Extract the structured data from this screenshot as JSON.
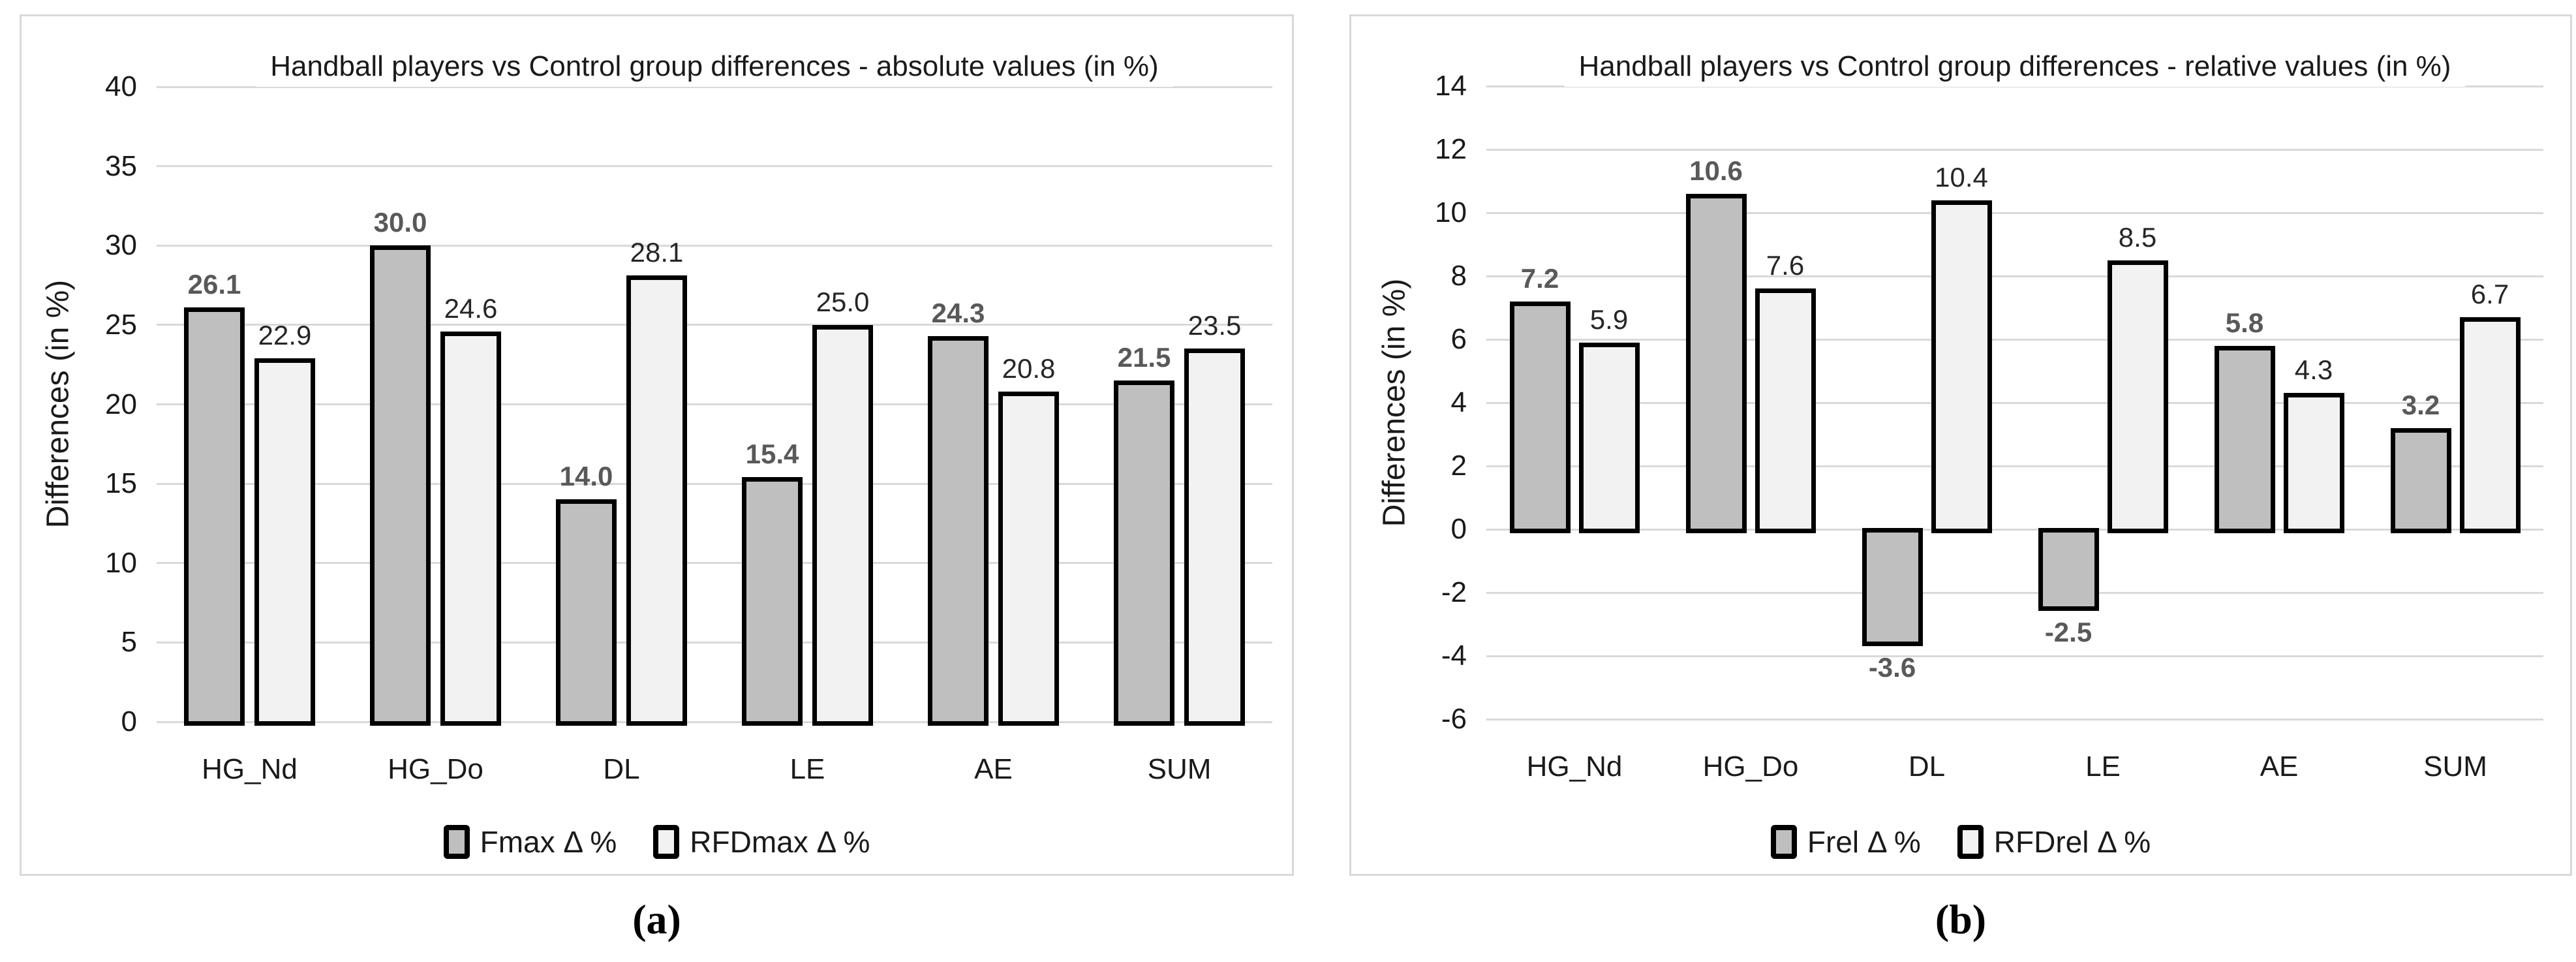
{
  "styles": {
    "series1_fill": "#bfbfbf",
    "series2_fill": "#f2f2f2",
    "bar_border": "#000000",
    "gridline_color": "#d9d9d9",
    "panel_border_color": "#d9d9d9",
    "series1_label_color": "#595959",
    "series2_label_color": "#262626"
  },
  "captions": {
    "a": "(a)",
    "b": "(b)"
  },
  "chart_data": [
    {
      "type": "bar",
      "title": "Handball players vs Control group differences  - absolute values (in %)",
      "xlabel": "",
      "ylabel": "Differences (in %)",
      "categories": [
        "HG_Nd",
        "HG_Do",
        "DL",
        "LE",
        "AE",
        "SUM"
      ],
      "series": [
        {
          "name": "Fmax Δ %",
          "values": [
            26.1,
            30.0,
            14.0,
            15.4,
            24.3,
            21.5
          ]
        },
        {
          "name": "RFDmax Δ %",
          "values": [
            22.9,
            24.6,
            28.1,
            25.0,
            20.8,
            23.5
          ]
        }
      ],
      "ylim": [
        0,
        40
      ],
      "ytick_step": 5,
      "grid": true,
      "legend_position": "bottom",
      "caption": "(a)"
    },
    {
      "type": "bar",
      "title": "Handball players vs Control group differences - relative values (in %)",
      "xlabel": "",
      "ylabel": "Differences (in %)",
      "categories": [
        "HG_Nd",
        "HG_Do",
        "DL",
        "LE",
        "AE",
        "SUM"
      ],
      "series": [
        {
          "name": "Frel Δ %",
          "values": [
            7.2,
            10.6,
            -3.6,
            -2.5,
            5.8,
            3.2
          ]
        },
        {
          "name": "RFDrel Δ %",
          "values": [
            5.9,
            7.6,
            10.4,
            8.5,
            4.3,
            6.7
          ]
        }
      ],
      "ylim": [
        -6,
        14
      ],
      "ytick_step": 2,
      "grid": true,
      "legend_position": "bottom",
      "caption": "(b)"
    }
  ]
}
